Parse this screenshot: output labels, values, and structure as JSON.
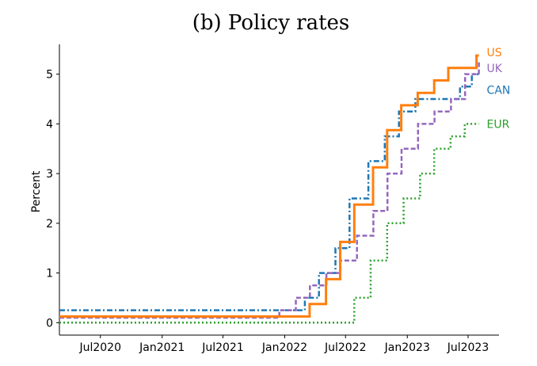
{
  "chart_data": {
    "type": "line",
    "title": "(b) Policy rates",
    "xlabel": "",
    "ylabel": "Percent",
    "ylim": [
      -0.25,
      5.6
    ],
    "yticks": [
      0,
      1,
      2,
      3,
      4,
      5
    ],
    "xlim": [
      "2020-03-01",
      "2023-10-01"
    ],
    "xticks": [
      {
        "date": "2020-07-01",
        "label": "Jul2020"
      },
      {
        "date": "2021-01-01",
        "label": "Jan2021"
      },
      {
        "date": "2021-07-01",
        "label": "Jul2021"
      },
      {
        "date": "2022-01-01",
        "label": "Jan2022"
      },
      {
        "date": "2022-07-01",
        "label": "Jul2022"
      },
      {
        "date": "2023-01-01",
        "label": "Jan2023"
      },
      {
        "date": "2023-07-01",
        "label": "Jul2023"
      }
    ],
    "grid": false,
    "series": [
      {
        "name": "EUR",
        "color": "#2ca02c",
        "style": "dotted",
        "points": [
          [
            "2020-03-01",
            0
          ],
          [
            "2022-07-27",
            0.5
          ],
          [
            "2022-09-14",
            1.25
          ],
          [
            "2022-11-02",
            2.0
          ],
          [
            "2022-12-21",
            2.5
          ],
          [
            "2023-02-08",
            3.0
          ],
          [
            "2023-03-22",
            3.5
          ],
          [
            "2023-05-10",
            3.75
          ],
          [
            "2023-06-21",
            4.0
          ],
          [
            "2023-08-02",
            4.0
          ]
        ]
      },
      {
        "name": "CAN",
        "color": "#1f77b4",
        "style": "dashdot",
        "points": [
          [
            "2020-03-01",
            0.25
          ],
          [
            "2022-03-02",
            0.5
          ],
          [
            "2022-04-13",
            1.0
          ],
          [
            "2022-06-01",
            1.5
          ],
          [
            "2022-07-13",
            2.5
          ],
          [
            "2022-09-07",
            3.25
          ],
          [
            "2022-10-26",
            3.75
          ],
          [
            "2022-12-07",
            4.25
          ],
          [
            "2023-01-25",
            4.5
          ],
          [
            "2023-06-07",
            4.75
          ],
          [
            "2023-07-12",
            5.0
          ],
          [
            "2023-08-02",
            5.0
          ]
        ]
      },
      {
        "name": "UK",
        "color": "#9467bd",
        "style": "dashed",
        "points": [
          [
            "2020-03-01",
            0.1
          ],
          [
            "2021-12-16",
            0.25
          ],
          [
            "2022-02-03",
            0.5
          ],
          [
            "2022-03-17",
            0.75
          ],
          [
            "2022-05-05",
            1.0
          ],
          [
            "2022-06-16",
            1.25
          ],
          [
            "2022-08-04",
            1.75
          ],
          [
            "2022-09-22",
            2.25
          ],
          [
            "2022-11-03",
            3.0
          ],
          [
            "2022-12-15",
            3.5
          ],
          [
            "2023-02-02",
            4.0
          ],
          [
            "2023-03-23",
            4.25
          ],
          [
            "2023-05-11",
            4.5
          ],
          [
            "2023-06-22",
            5.0
          ],
          [
            "2023-08-02",
            5.25
          ]
        ]
      },
      {
        "name": "US",
        "color": "#ff7f0e",
        "style": "solid",
        "points": [
          [
            "2020-03-01",
            0.125
          ],
          [
            "2022-03-16",
            0.375
          ],
          [
            "2022-05-04",
            0.875
          ],
          [
            "2022-06-15",
            1.625
          ],
          [
            "2022-07-27",
            2.375
          ],
          [
            "2022-09-21",
            3.125
          ],
          [
            "2022-11-02",
            3.875
          ],
          [
            "2022-12-14",
            4.375
          ],
          [
            "2023-02-01",
            4.625
          ],
          [
            "2023-03-22",
            4.875
          ],
          [
            "2023-05-03",
            5.125
          ],
          [
            "2023-07-26",
            5.375
          ],
          [
            "2023-08-02",
            5.375
          ]
        ]
      }
    ]
  }
}
